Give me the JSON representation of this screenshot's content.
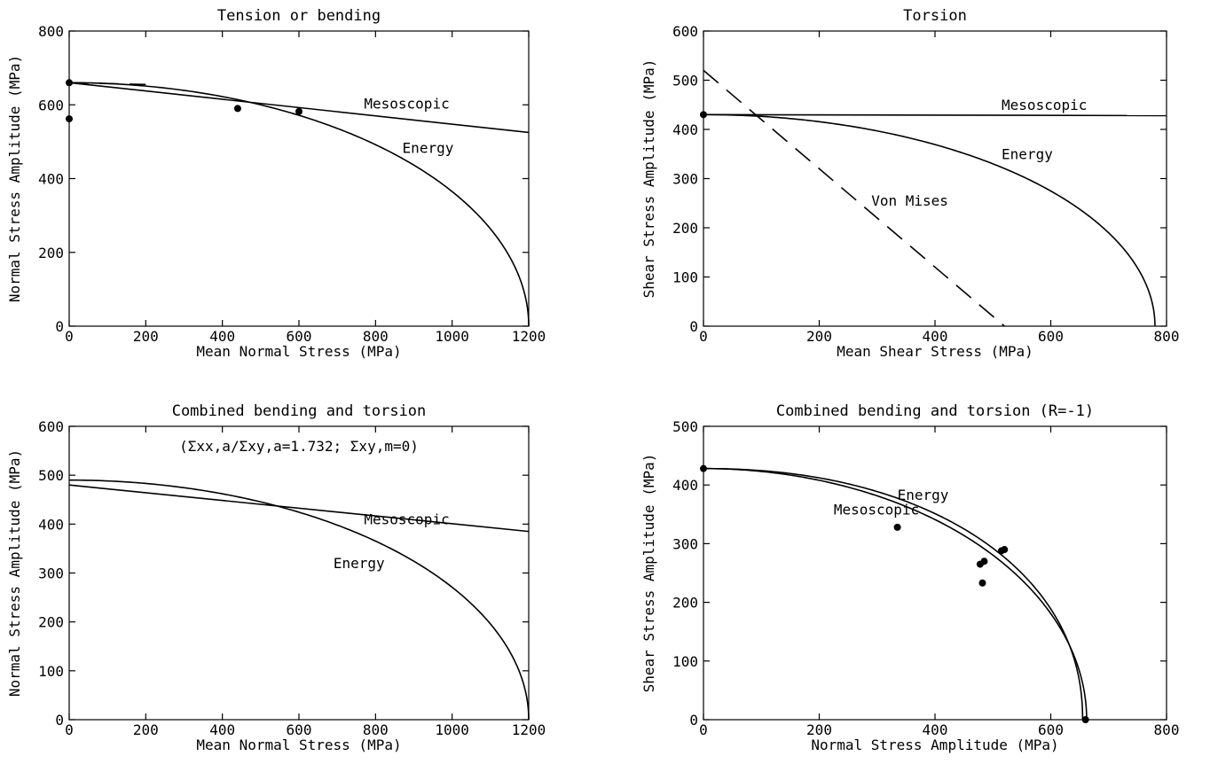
{
  "chart_data": [
    {
      "type": "line",
      "title": "Tension or bending",
      "xlabel": "Mean Normal Stress (MPa)",
      "ylabel": "Normal Stress Amplitude (MPa)",
      "xlim": [
        0,
        1200
      ],
      "ylim": [
        0,
        800
      ],
      "xticks": [
        "0",
        "200",
        "400",
        "600",
        "800",
        "1000",
        "1200"
      ],
      "yticks": [
        "0",
        "200",
        "400",
        "600",
        "800"
      ],
      "grid": false,
      "series": [
        {
          "name": "Mesoscopic",
          "style": "solid",
          "x": [
            0,
            1200
          ],
          "y": [
            660,
            525
          ]
        },
        {
          "name": "Energy",
          "style": "solid",
          "kind": "ellipse",
          "a": 1200,
          "b": 660
        },
        {
          "name": "",
          "style": "dashed",
          "x": [
            0,
            200
          ],
          "y": [
            660,
            655
          ]
        }
      ],
      "points": [
        [
          0,
          660
        ],
        [
          0,
          562
        ],
        [
          440,
          590
        ],
        [
          600,
          582
        ]
      ],
      "annotations": [
        {
          "text": "Mesoscopic",
          "x": 770,
          "y": 590
        },
        {
          "text": "Energy",
          "x": 870,
          "y": 470
        }
      ]
    },
    {
      "type": "line",
      "title": "Torsion",
      "xlabel": "Mean Shear Stress (MPa)",
      "ylabel": "Shear Stress Amplitude (MPa)",
      "xlim": [
        0,
        800
      ],
      "ylim": [
        0,
        600
      ],
      "xticks": [
        "0",
        "200",
        "400",
        "600",
        "800"
      ],
      "yticks": [
        "0",
        "100",
        "200",
        "300",
        "400",
        "500",
        "600"
      ],
      "grid": false,
      "series": [
        {
          "name": "Mesoscopic",
          "style": "solid",
          "x": [
            0,
            800
          ],
          "y": [
            430,
            428
          ]
        },
        {
          "name": "Energy",
          "style": "solid",
          "kind": "ellipse",
          "a": 780,
          "b": 430
        },
        {
          "name": "Von Mises",
          "style": "dashed",
          "x": [
            0,
            520
          ],
          "y": [
            520,
            0
          ]
        }
      ],
      "points": [
        [
          0,
          430
        ]
      ],
      "annotations": [
        {
          "text": "Mesoscopic",
          "x": 515,
          "y": 440
        },
        {
          "text": "Energy",
          "x": 515,
          "y": 340
        },
        {
          "text": "Von Mises",
          "x": 290,
          "y": 245
        }
      ]
    },
    {
      "type": "line",
      "title": "Combined bending and torsion",
      "subtitle": "(Σxx,a/Σxy,a=1.732; Σxy,m=0)",
      "xlabel": "Mean Normal Stress (MPa)",
      "ylabel": "Normal Stress Amplitude (MPa)",
      "xlim": [
        0,
        1200
      ],
      "ylim": [
        0,
        600
      ],
      "xticks": [
        "0",
        "200",
        "400",
        "600",
        "800",
        "1000",
        "1200"
      ],
      "yticks": [
        "0",
        "100",
        "200",
        "300",
        "400",
        "500",
        "600"
      ],
      "grid": false,
      "series": [
        {
          "name": "Mesoscopic",
          "style": "solid",
          "x": [
            0,
            1200
          ],
          "y": [
            480,
            385
          ]
        },
        {
          "name": "Energy",
          "style": "solid",
          "kind": "ellipse",
          "a": 1200,
          "b": 490
        }
      ],
      "points": [],
      "annotations": [
        {
          "text": "Mesoscopic",
          "x": 770,
          "y": 400
        },
        {
          "text": "Energy",
          "x": 690,
          "y": 310
        }
      ]
    },
    {
      "type": "line",
      "title": "Combined bending and torsion (R=-1)",
      "xlabel": "Normal Stress Amplitude (MPa)",
      "ylabel": "Shear Stress Amplitude (MPa)",
      "xlim": [
        0,
        800
      ],
      "ylim": [
        0,
        500
      ],
      "xticks": [
        "0",
        "200",
        "400",
        "600",
        "800"
      ],
      "yticks": [
        "0",
        "100",
        "200",
        "300",
        "400",
        "500"
      ],
      "grid": false,
      "series": [
        {
          "name": "Energy",
          "style": "solid",
          "kind": "ellipse",
          "a": 662,
          "b": 428
        },
        {
          "name": "Mesoscopic",
          "style": "solid",
          "kind": "ellipse",
          "a": 655,
          "b": 428,
          "shape": 2.15
        }
      ],
      "points": [
        [
          0,
          428
        ],
        [
          335,
          328
        ],
        [
          478,
          265
        ],
        [
          485,
          270
        ],
        [
          482,
          233
        ],
        [
          515,
          288
        ],
        [
          520,
          290
        ],
        [
          660,
          0
        ]
      ],
      "annotations": [
        {
          "text": "Energy",
          "x": 335,
          "y": 375
        },
        {
          "text": "Mesoscopic",
          "x": 225,
          "y": 350
        }
      ]
    }
  ]
}
